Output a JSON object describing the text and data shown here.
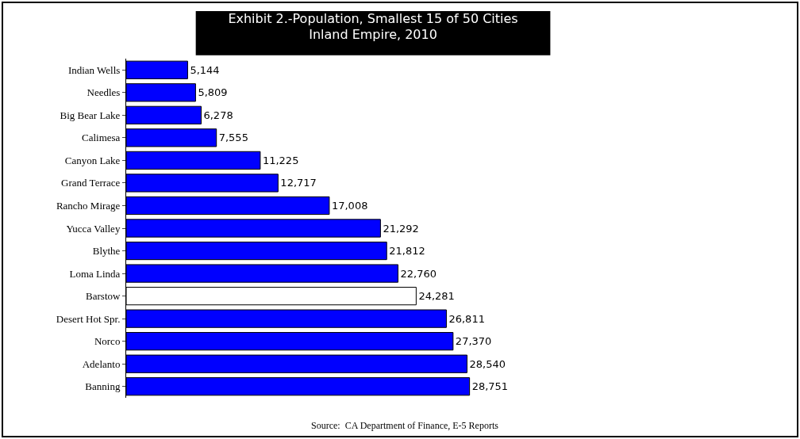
{
  "chart_data": {
    "type": "bar",
    "orientation": "horizontal",
    "title": "Exhibit 2.-Population, Smallest 15 of 50 Cities\nInland Empire, 2010",
    "categories": [
      "Indian Wells",
      "Needles",
      "Big Bear Lake",
      "Calimesa",
      "Canyon Lake",
      "Grand Terrace",
      "Rancho Mirage",
      "Yucca Valley",
      "Blythe",
      "Loma Linda",
      "Barstow",
      "Desert Hot Spr.",
      "Norco",
      "Adelanto",
      "Banning"
    ],
    "values": [
      5144,
      5809,
      6278,
      7555,
      11225,
      12717,
      17008,
      21292,
      21812,
      22760,
      24281,
      26811,
      27370,
      28540,
      28751
    ],
    "colors": [
      "#0000ff",
      "#0000ff",
      "#0000ff",
      "#0000ff",
      "#0000ff",
      "#0000ff",
      "#0000ff",
      "#0000ff",
      "#0000ff",
      "#0000ff",
      "#ffffff",
      "#0000ff",
      "#0000ff",
      "#0000ff",
      "#0000ff"
    ],
    "value_labels": [
      "5,144",
      "5,809",
      "6,278",
      "7,555",
      "11,225",
      "12,717",
      "17,008",
      "21,292",
      "21,812",
      "22,760",
      "24,281",
      "26,811",
      "27,370",
      "28,540",
      "28,751"
    ],
    "grid": false,
    "annotations": [
      "Source:  CA Department of Finance, E-5 Reports"
    ]
  }
}
